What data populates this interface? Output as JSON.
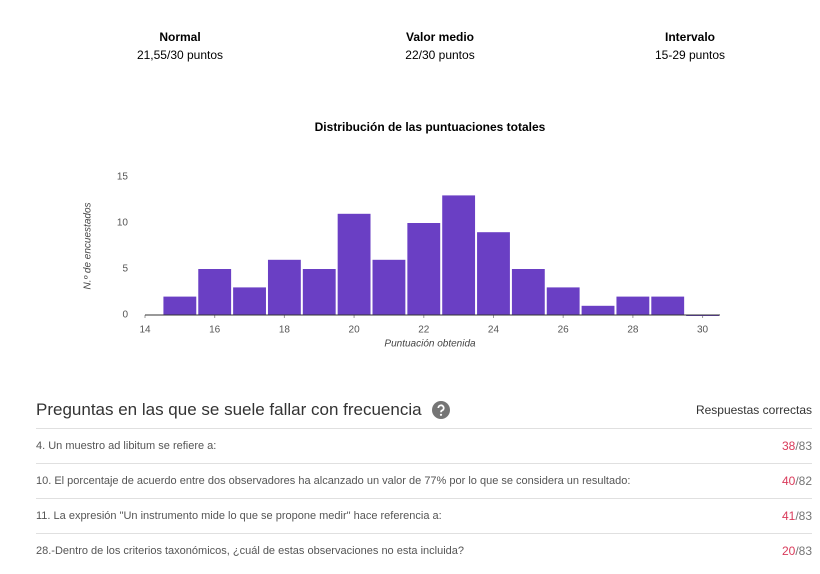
{
  "stats": [
    {
      "label": "Normal",
      "value": "21,55/30 puntos"
    },
    {
      "label": "Valor medio",
      "value": "22/30 puntos"
    },
    {
      "label": "Intervalo",
      "value": "15-29 puntos"
    }
  ],
  "chart_data": {
    "type": "histogram",
    "title": "Distribución de las puntuaciones totales",
    "x_label": "Puntuación obtenida",
    "y_label": "N.º de encuestados",
    "bins": [
      14.5,
      15.5,
      16.5,
      17.5,
      18.5,
      19.5,
      20.5,
      21.5,
      22.5,
      23.5,
      24.5,
      25.5,
      26.5,
      27.5,
      28.5,
      29.5,
      30.5
    ],
    "counts": [
      2,
      5,
      3,
      6,
      5,
      11,
      6,
      10,
      13,
      9,
      5,
      3,
      1,
      2,
      2,
      0
    ],
    "color": "#6a3fc4",
    "xlim": [
      14,
      30.5
    ],
    "xticks": [
      14,
      16,
      18,
      20,
      22,
      24,
      26,
      28,
      30
    ],
    "ylim": [
      0,
      15
    ],
    "yticks": [
      0,
      5,
      10,
      15
    ]
  },
  "questions": {
    "title": "Preguntas en las que se suele fallar con frecuencia",
    "column": "Respuestas correctas",
    "rows": [
      {
        "text": "4. Un muestro ad libitum se refiere a:",
        "correct": "38",
        "total": "/83"
      },
      {
        "text": "10. El porcentaje de acuerdo entre dos observadores ha alcanzado un valor de 77% por lo que se considera un resultado:",
        "correct": "40",
        "total": "/82"
      },
      {
        "text": "11. La expresión \"Un instrumento mide lo que se propone medir\" hace referencia a:",
        "correct": "41",
        "total": "/83"
      },
      {
        "text": "28.-Dentro de los criterios taxonómicos, ¿cuál de estas observaciones no esta incluida?",
        "correct": "20",
        "total": "/83"
      }
    ]
  }
}
